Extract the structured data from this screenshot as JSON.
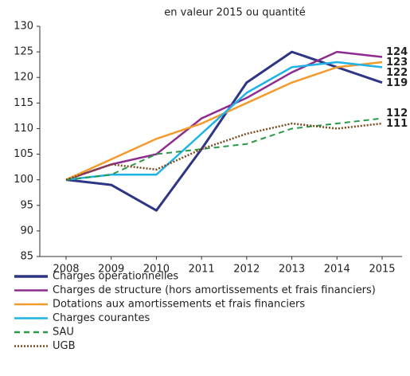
{
  "chart_data": {
    "type": "line",
    "title": "en valeur 2015 ou quantité",
    "categories": [
      "2008",
      "2009",
      "2010",
      "2011",
      "2012",
      "2013",
      "2014",
      "2015"
    ],
    "series": [
      {
        "name": "Charges opérationnelles",
        "color": "#2e3585",
        "dash": "solid",
        "values": [
          100,
          99,
          94,
          106,
          119,
          125,
          122,
          119
        ]
      },
      {
        "name": "Charges de structure (hors amortissements et frais financiers)",
        "color": "#8e2b8e",
        "dash": "solid",
        "values": [
          100,
          103,
          105,
          112,
          116,
          121,
          125,
          124
        ]
      },
      {
        "name": "Dotations aux amortissements et frais financiers",
        "color": "#f39a2d",
        "dash": "solid",
        "values": [
          100,
          104,
          108,
          111,
          115,
          119,
          122,
          123
        ]
      },
      {
        "name": "Charges courantes",
        "color": "#1fb2e6",
        "dash": "solid",
        "values": [
          100,
          101,
          101,
          109,
          117,
          122,
          123,
          122
        ]
      },
      {
        "name": "SAU",
        "color": "#2a9a48",
        "dash": "dashed",
        "values": [
          100,
          101,
          105,
          106,
          107,
          110,
          111,
          112
        ]
      },
      {
        "name": "UGB",
        "color": "#7a4a1e",
        "dash": "dotted",
        "values": [
          100,
          103,
          102,
          106,
          109,
          111,
          110,
          111
        ]
      }
    ],
    "ylim": [
      85,
      130
    ],
    "yticks": [
      85,
      90,
      95,
      100,
      105,
      110,
      115,
      120,
      125,
      130
    ]
  }
}
